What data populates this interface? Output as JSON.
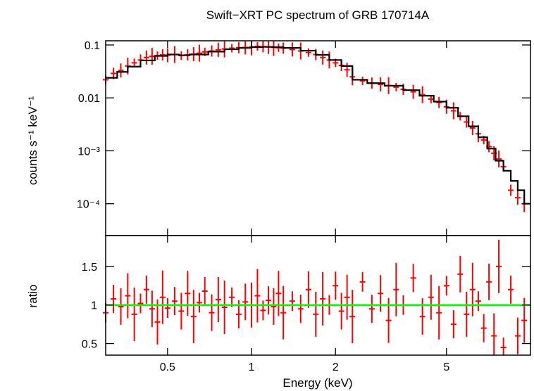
{
  "chart_data": [
    {
      "type": "scatter",
      "title": "Swift−XRT PC spectrum of GRB 170714A",
      "ylabel": "counts s⁻¹ keV⁻¹",
      "xscale": "log",
      "yscale": "log",
      "xlim": [
        0.3,
        10
      ],
      "ylim": [
        2.5e-05,
        0.12
      ],
      "xticks": [
        0.5,
        1,
        2,
        5
      ],
      "yticks": [
        {
          "value": 0.1,
          "label": "0.1"
        },
        {
          "value": 0.01,
          "label": "0.01"
        },
        {
          "value": 0.001,
          "label": "10⁻³"
        },
        {
          "value": 0.0001,
          "label": "10⁻⁴"
        }
      ],
      "grid": false,
      "series": [
        {
          "kind": "model",
          "color": "#000000",
          "x": [
            0.3,
            0.33,
            0.36,
            0.4,
            0.45,
            0.5,
            0.55,
            0.6,
            0.7,
            0.8,
            0.9,
            1.0,
            1.1,
            1.2,
            1.3,
            1.5,
            1.7,
            1.9,
            2.1,
            2.3,
            2.6,
            3.0,
            3.5,
            4.0,
            4.5,
            5.0,
            5.5,
            6.0,
            6.5,
            7.0,
            7.5,
            8.0,
            8.5,
            9.0,
            9.5,
            10.0
          ],
          "y": [
            0.024,
            0.031,
            0.039,
            0.051,
            0.062,
            0.066,
            0.064,
            0.066,
            0.075,
            0.083,
            0.088,
            0.091,
            0.092,
            0.091,
            0.088,
            0.078,
            0.065,
            0.052,
            0.04,
            0.022,
            0.019,
            0.017,
            0.014,
            0.011,
            0.0085,
            0.0065,
            0.0045,
            0.0029,
            0.0018,
            0.0011,
            0.00065,
            0.00042,
            0.00027,
            0.00018,
            0.0001,
            0.0001
          ]
        },
        {
          "kind": "data",
          "color": "#ff0000",
          "x": [
            0.3,
            0.32,
            0.34,
            0.36,
            0.38,
            0.4,
            0.42,
            0.44,
            0.46,
            0.48,
            0.5,
            0.53,
            0.56,
            0.59,
            0.62,
            0.65,
            0.68,
            0.72,
            0.76,
            0.8,
            0.85,
            0.9,
            0.95,
            1.0,
            1.05,
            1.1,
            1.15,
            1.2,
            1.25,
            1.3,
            1.4,
            1.5,
            1.6,
            1.7,
            1.8,
            1.9,
            2.0,
            2.1,
            2.2,
            2.3,
            2.5,
            2.7,
            2.9,
            3.1,
            3.3,
            3.5,
            3.8,
            4.1,
            4.4,
            4.7,
            5.0,
            5.3,
            5.6,
            5.9,
            6.2,
            6.5,
            6.8,
            7.1,
            7.4,
            7.7,
            8.0,
            8.5,
            9.0,
            9.5
          ],
          "y": [
            0.022,
            0.029,
            0.033,
            0.04,
            0.046,
            0.052,
            0.058,
            0.061,
            0.063,
            0.065,
            0.064,
            0.066,
            0.063,
            0.065,
            0.067,
            0.07,
            0.074,
            0.077,
            0.081,
            0.084,
            0.087,
            0.089,
            0.09,
            0.092,
            0.094,
            0.093,
            0.092,
            0.09,
            0.089,
            0.087,
            0.082,
            0.077,
            0.072,
            0.066,
            0.058,
            0.052,
            0.046,
            0.041,
            0.034,
            0.025,
            0.021,
            0.019,
            0.018,
            0.017,
            0.016,
            0.0145,
            0.013,
            0.0115,
            0.0095,
            0.0082,
            0.0068,
            0.0057,
            0.0045,
            0.0035,
            0.0027,
            0.0021,
            0.0016,
            0.0012,
            0.0009,
            0.0007,
            0.0005,
            0.00018,
            0.00013,
            0.0001
          ]
        }
      ]
    },
    {
      "type": "scatter",
      "xlabel": "Energy (keV)",
      "ylabel": "ratio",
      "xscale": "log",
      "xlim": [
        0.3,
        10
      ],
      "ylim": [
        0.35,
        1.9
      ],
      "xticks": [
        0.5,
        1,
        2,
        5
      ],
      "yticks": [
        {
          "value": 0.5,
          "label": "0.5"
        },
        {
          "value": 1,
          "label": "1"
        },
        {
          "value": 1.5,
          "label": "1.5"
        }
      ],
      "reference_line": {
        "y": 1,
        "color": "#00ff00"
      },
      "series": [
        {
          "kind": "data",
          "color": "#ff0000",
          "x": [
            0.3,
            0.32,
            0.34,
            0.36,
            0.38,
            0.4,
            0.42,
            0.44,
            0.46,
            0.48,
            0.5,
            0.53,
            0.56,
            0.59,
            0.62,
            0.65,
            0.68,
            0.72,
            0.76,
            0.8,
            0.85,
            0.9,
            0.95,
            1.0,
            1.05,
            1.1,
            1.15,
            1.2,
            1.25,
            1.3,
            1.4,
            1.5,
            1.6,
            1.7,
            1.8,
            1.9,
            2.0,
            2.1,
            2.2,
            2.3,
            2.5,
            2.7,
            2.9,
            3.1,
            3.3,
            3.5,
            3.8,
            4.1,
            4.4,
            4.7,
            5.0,
            5.3,
            5.6,
            5.9,
            6.2,
            6.5,
            6.8,
            7.1,
            7.4,
            7.7,
            8.0,
            8.5,
            9.0,
            9.5
          ],
          "y": [
            0.9,
            1.08,
            0.98,
            1.12,
            0.88,
            1.02,
            1.2,
            0.95,
            0.78,
            1.1,
            0.96,
            1.05,
            0.92,
            1.15,
            0.85,
            1.03,
            1.18,
            0.9,
            1.07,
            0.97,
            1.1,
            0.88,
            1.04,
            1.0,
            1.12,
            0.93,
            1.06,
            0.98,
            1.15,
            0.9,
            1.05,
            0.95,
            1.2,
            0.88,
            1.08,
            1.0,
            1.25,
            0.92,
            1.1,
            0.85,
            1.3,
            0.95,
            1.15,
            0.8,
            1.2,
            1.0,
            1.35,
            0.85,
            1.1,
            0.9,
            1.25,
            0.75,
            1.4,
            0.88,
            1.2,
            1.05,
            0.7,
            1.3,
            0.6,
            1.5,
            0.45,
            1.2,
            0.6,
            0.8
          ]
        }
      ]
    }
  ]
}
